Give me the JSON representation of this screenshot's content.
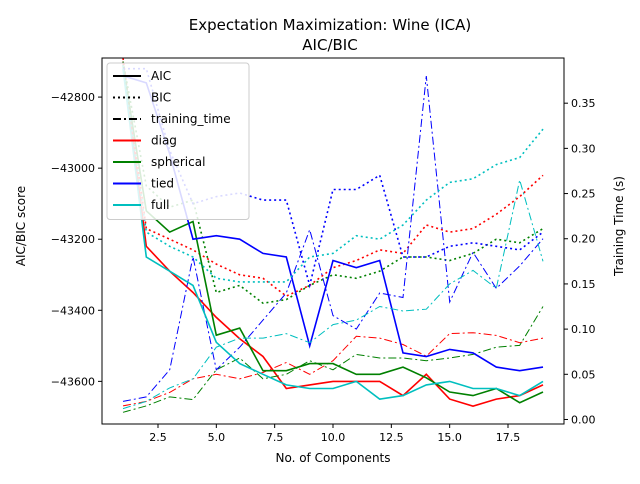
{
  "chart_data": {
    "type": "line",
    "title": "Expectation Maximization: Wine (ICA)",
    "subtitle": "AIC/BIC",
    "xlabel": "No. of Components",
    "ylabel_left": "AIC/BIC score",
    "ylabel_right": "Training Time (s)",
    "xlim": [
      0.1,
      19.9
    ],
    "ylim_left": [
      -43720,
      -42690
    ],
    "ylim_right": [
      -0.005,
      0.4
    ],
    "x_ticks": [
      2.5,
      5.0,
      7.5,
      10.0,
      12.5,
      15.0,
      17.5
    ],
    "x_tick_labels": [
      "2.5",
      "5.0",
      "7.5",
      "10.0",
      "12.5",
      "15.0",
      "17.5"
    ],
    "y_left_ticks": [
      -43600,
      -43400,
      -43200,
      -43000,
      -42800
    ],
    "y_left_tick_labels": [
      "−43600",
      "−43400",
      "−43200",
      "−43000",
      "−42800"
    ],
    "y_right_ticks": [
      0.0,
      0.05,
      0.1,
      0.15,
      0.2,
      0.25,
      0.3,
      0.35
    ],
    "y_right_tick_labels": [
      "0.00",
      "0.05",
      "0.10",
      "0.15",
      "0.20",
      "0.25",
      "0.30",
      "0.35"
    ],
    "grid": false,
    "legend_position": "top-left",
    "legend": [
      {
        "label": "AIC",
        "style": "solid",
        "color": "#000000"
      },
      {
        "label": "BIC",
        "style": "dotted",
        "color": "#000000"
      },
      {
        "label": "training_time",
        "style": "dashdot",
        "color": "#000000"
      },
      {
        "label": "diag",
        "style": "solid",
        "color": "#ff0000"
      },
      {
        "label": "spherical",
        "style": "solid",
        "color": "#008000"
      },
      {
        "label": "tied",
        "style": "solid",
        "color": "#0000ff"
      },
      {
        "label": "full",
        "style": "solid",
        "color": "#00bfbf"
      }
    ],
    "x": [
      1,
      2,
      3,
      4,
      5,
      6,
      7,
      8,
      9,
      10,
      11,
      12,
      13,
      14,
      15,
      16,
      17,
      18,
      19
    ],
    "series": [
      {
        "name": "diag",
        "metric": "AIC",
        "axis": "left",
        "color": "#ff0000",
        "style": "solid",
        "values": [
          -42700,
          -43220,
          -43290,
          -43350,
          -43420,
          -43480,
          -43530,
          -43620,
          -43610,
          -43600,
          -43600,
          -43600,
          -43640,
          -43580,
          -43650,
          -43670,
          -43650,
          -43640,
          -43610
        ]
      },
      {
        "name": "diag",
        "metric": "BIC",
        "axis": "left",
        "color": "#ff0000",
        "style": "dotted",
        "values": [
          -42690,
          -43170,
          -43200,
          -43230,
          -43270,
          -43300,
          -43310,
          -43360,
          -43330,
          -43280,
          -43260,
          -43230,
          -43240,
          -43160,
          -43180,
          -43170,
          -43130,
          -43080,
          -43020
        ]
      },
      {
        "name": "diag",
        "metric": "training_time",
        "axis": "right",
        "color": "#ff0000",
        "style": "dashdot",
        "values": [
          0.015,
          0.02,
          0.03,
          0.045,
          0.05,
          0.045,
          0.052,
          0.063,
          0.05,
          0.065,
          0.092,
          0.09,
          0.083,
          0.07,
          0.095,
          0.096,
          0.093,
          0.085,
          0.09
        ]
      },
      {
        "name": "spherical",
        "metric": "AIC",
        "axis": "left",
        "color": "#008000",
        "style": "solid",
        "values": [
          -42710,
          -43120,
          -43180,
          -43150,
          -43470,
          -43450,
          -43570,
          -43570,
          -43550,
          -43550,
          -43580,
          -43580,
          -43560,
          -43590,
          -43630,
          -43640,
          -43620,
          -43660,
          -43630
        ]
      },
      {
        "name": "spherical",
        "metric": "BIC",
        "axis": "left",
        "color": "#008000",
        "style": "dotted",
        "values": [
          -42700,
          -43050,
          -43110,
          -43090,
          -43350,
          -43330,
          -43380,
          -43370,
          -43330,
          -43300,
          -43310,
          -43290,
          -43250,
          -43250,
          -43260,
          -43240,
          -43200,
          -43210,
          -43170
        ]
      },
      {
        "name": "spherical",
        "metric": "training_time",
        "axis": "right",
        "color": "#008000",
        "style": "dashdot",
        "values": [
          0.008,
          0.015,
          0.025,
          0.022,
          0.055,
          0.068,
          0.045,
          0.05,
          0.065,
          0.055,
          0.072,
          0.068,
          0.068,
          0.065,
          0.068,
          0.072,
          0.08,
          0.082,
          0.125
        ]
      },
      {
        "name": "tied",
        "metric": "AIC",
        "axis": "left",
        "color": "#0000ff",
        "style": "solid",
        "values": [
          -42740,
          -42760,
          -42960,
          -43200,
          -43190,
          -43200,
          -43240,
          -43250,
          -43500,
          -43260,
          -43280,
          -43260,
          -43520,
          -43530,
          -43510,
          -43520,
          -43560,
          -43570,
          -43560
        ]
      },
      {
        "name": "tied",
        "metric": "BIC",
        "axis": "left",
        "color": "#0000ff",
        "style": "dotted",
        "values": [
          -42720,
          -42720,
          -42950,
          -43100,
          -43080,
          -43070,
          -43090,
          -43090,
          -43330,
          -43060,
          -43060,
          -43020,
          -43250,
          -43250,
          -43220,
          -43210,
          -43220,
          -43230,
          -43180
        ]
      },
      {
        "name": "tied",
        "metric": "training_time",
        "axis": "right",
        "color": "#0000ff",
        "style": "dashdot",
        "values": [
          0.02,
          0.025,
          0.055,
          0.18,
          0.055,
          0.08,
          0.11,
          0.14,
          0.21,
          0.115,
          0.1,
          0.14,
          0.135,
          0.38,
          0.13,
          0.185,
          0.145,
          0.17,
          0.2
        ]
      },
      {
        "name": "full",
        "metric": "AIC",
        "axis": "left",
        "color": "#00bfbf",
        "style": "solid",
        "values": [
          -42720,
          -43250,
          -43290,
          -43330,
          -43490,
          -43550,
          -43580,
          -43610,
          -43620,
          -43620,
          -43600,
          -43650,
          -43640,
          -43610,
          -43600,
          -43620,
          -43620,
          -43640,
          -43600
        ]
      },
      {
        "name": "full",
        "metric": "BIC",
        "axis": "left",
        "color": "#00bfbf",
        "style": "dotted",
        "values": [
          -42710,
          -43180,
          -43220,
          -43250,
          -43310,
          -43320,
          -43320,
          -43320,
          -43250,
          -43240,
          -43190,
          -43200,
          -43160,
          -43090,
          -43040,
          -43030,
          -42990,
          -42970,
          -42890
        ]
      },
      {
        "name": "full",
        "metric": "training_time",
        "axis": "right",
        "color": "#00bfbf",
        "style": "dashdot",
        "values": [
          0.012,
          0.02,
          0.035,
          0.045,
          0.08,
          0.09,
          0.09,
          0.095,
          0.085,
          0.105,
          0.11,
          0.125,
          0.12,
          0.122,
          0.15,
          0.165,
          0.145,
          0.265,
          0.175
        ]
      }
    ]
  }
}
